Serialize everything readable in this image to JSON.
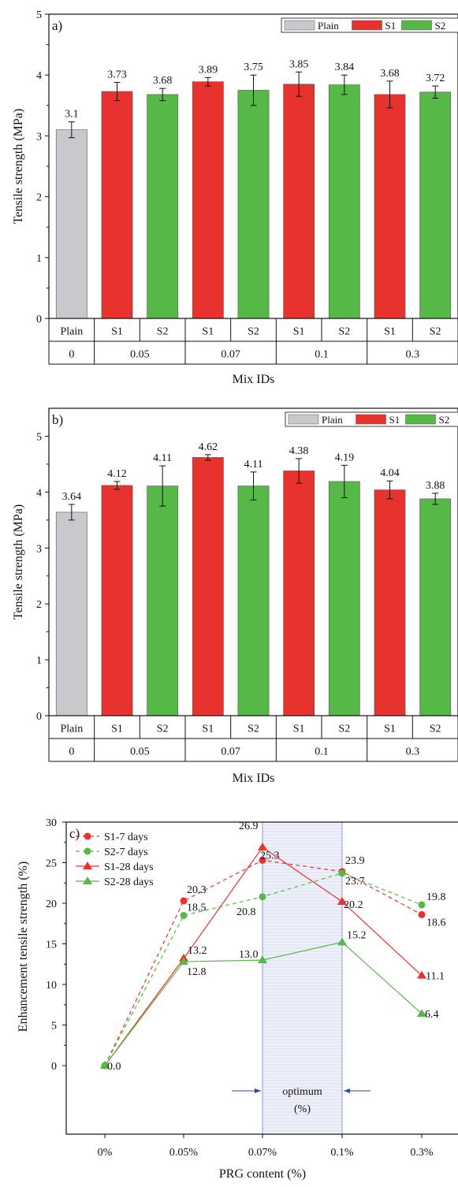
{
  "colors": {
    "plain": "#c8c9cc",
    "s1": "#e8322d",
    "s2": "#56b947",
    "axis": "#111111",
    "shade": "#c9cce6",
    "shade_border": "#8e93d6",
    "arrow": "#2b4da8"
  },
  "chart_data": [
    {
      "type": "bar",
      "panel_label": "a)",
      "ylabel": "Tensile strength (MPa)",
      "xlabel": "Mix IDs",
      "ylim": [
        0,
        5
      ],
      "yticks": [
        "0",
        "1",
        "2",
        "3",
        "4",
        "5"
      ],
      "legend": [
        "Plain",
        "S1",
        "S2"
      ],
      "legend_position": "top-right",
      "bars": [
        {
          "mix": "Plain",
          "series": "Plain",
          "value": 3.1,
          "label": "3.1",
          "err": 0.13
        },
        {
          "mix": "S1",
          "series": "S1",
          "value": 3.73,
          "label": "3.73",
          "err": 0.15
        },
        {
          "mix": "S2",
          "series": "S2",
          "value": 3.68,
          "label": "3.68",
          "err": 0.1
        },
        {
          "mix": "S1",
          "series": "S1",
          "value": 3.89,
          "label": "3.89",
          "err": 0.07
        },
        {
          "mix": "S2",
          "series": "S2",
          "value": 3.75,
          "label": "3.75",
          "err": 0.25
        },
        {
          "mix": "S1",
          "series": "S1",
          "value": 3.85,
          "label": "3.85",
          "err": 0.2
        },
        {
          "mix": "S2",
          "series": "S2",
          "value": 3.84,
          "label": "3.84",
          "err": 0.16
        },
        {
          "mix": "S1",
          "series": "S1",
          "value": 3.68,
          "label": "3.68",
          "err": 0.22
        },
        {
          "mix": "S2",
          "series": "S2",
          "value": 3.72,
          "label": "3.72",
          "err": 0.1
        }
      ],
      "groups": [
        {
          "label": "0",
          "span": 1
        },
        {
          "label": "0.05",
          "span": 2
        },
        {
          "label": "0.07",
          "span": 2
        },
        {
          "label": "0.1",
          "span": 2
        },
        {
          "label": "0.3",
          "span": 2
        }
      ]
    },
    {
      "type": "bar",
      "panel_label": "b)",
      "ylabel": "Tensile strength (MPa)",
      "xlabel": "Mix IDs",
      "ylim": [
        0,
        5.5
      ],
      "yticks": [
        "0",
        "1",
        "2",
        "3",
        "4",
        "5"
      ],
      "legend": [
        "Plain",
        "S1",
        "S2"
      ],
      "legend_position": "top-right",
      "bars": [
        {
          "mix": "Plain",
          "series": "Plain",
          "value": 3.64,
          "label": "3.64",
          "err": 0.14
        },
        {
          "mix": "S1",
          "series": "S1",
          "value": 4.12,
          "label": "4.12",
          "err": 0.07
        },
        {
          "mix": "S2",
          "series": "S2",
          "value": 4.11,
          "label": "4.11",
          "err": 0.36
        },
        {
          "mix": "S1",
          "series": "S1",
          "value": 4.62,
          "label": "4.62",
          "err": 0.05
        },
        {
          "mix": "S2",
          "series": "S2",
          "value": 4.11,
          "label": "4.11",
          "err": 0.25
        },
        {
          "mix": "S1",
          "series": "S1",
          "value": 4.38,
          "label": "4.38",
          "err": 0.22
        },
        {
          "mix": "S2",
          "series": "S2",
          "value": 4.19,
          "label": "4.19",
          "err": 0.29
        },
        {
          "mix": "S1",
          "series": "S1",
          "value": 4.04,
          "label": "4.04",
          "err": 0.16
        },
        {
          "mix": "S2",
          "series": "S2",
          "value": 3.88,
          "label": "3.88",
          "err": 0.1
        }
      ],
      "groups": [
        {
          "label": "0",
          "span": 1
        },
        {
          "label": "0.05",
          "span": 2
        },
        {
          "label": "0.07",
          "span": 2
        },
        {
          "label": "0.1",
          "span": 2
        },
        {
          "label": "0.3",
          "span": 2
        }
      ]
    },
    {
      "type": "line",
      "panel_label": "c)",
      "ylabel": "Enhancement tensile strength (%)",
      "xlabel": "PRG content (%)",
      "categories": [
        "0%",
        "0.05%",
        "0.07%",
        "0.1%",
        "0.3%"
      ],
      "ylim": [
        -2,
        30
      ],
      "yticks": [
        "0",
        "5",
        "10",
        "15",
        "20",
        "25",
        "30"
      ],
      "legend_position": "top-left",
      "optimum_region": {
        "from": "0.07%",
        "to": "0.1%",
        "label_line1": "optimum",
        "label_line2": "(%)"
      },
      "series": [
        {
          "name": "S1-7 days",
          "color": "#e8322d",
          "dashed": true,
          "marker": "circle",
          "values": [
            0.0,
            20.3,
            25.3,
            23.9,
            18.6
          ],
          "labels": [
            "",
            "20.3",
            "25.3",
            "23.9",
            "18.6"
          ]
        },
        {
          "name": "S2-7 days",
          "color": "#56b947",
          "dashed": true,
          "marker": "circle",
          "values": [
            0.0,
            18.5,
            20.8,
            23.7,
            19.8
          ],
          "labels": [
            "",
            "18.5",
            "20.8",
            "23.7",
            "19.8"
          ]
        },
        {
          "name": "S1-28 days",
          "color": "#e8322d",
          "dashed": false,
          "marker": "triangle",
          "values": [
            0.0,
            13.2,
            26.9,
            20.2,
            11.1
          ],
          "labels": [
            "",
            "13.2",
            "26.9",
            "20.2",
            "11.1"
          ]
        },
        {
          "name": "S2-28 days",
          "color": "#56b947",
          "dashed": false,
          "marker": "triangle",
          "values": [
            0.0,
            12.8,
            13.0,
            15.2,
            6.4
          ],
          "labels": [
            "0.0",
            "12.8",
            "13.0",
            "15.2",
            "6.4"
          ]
        }
      ]
    }
  ]
}
